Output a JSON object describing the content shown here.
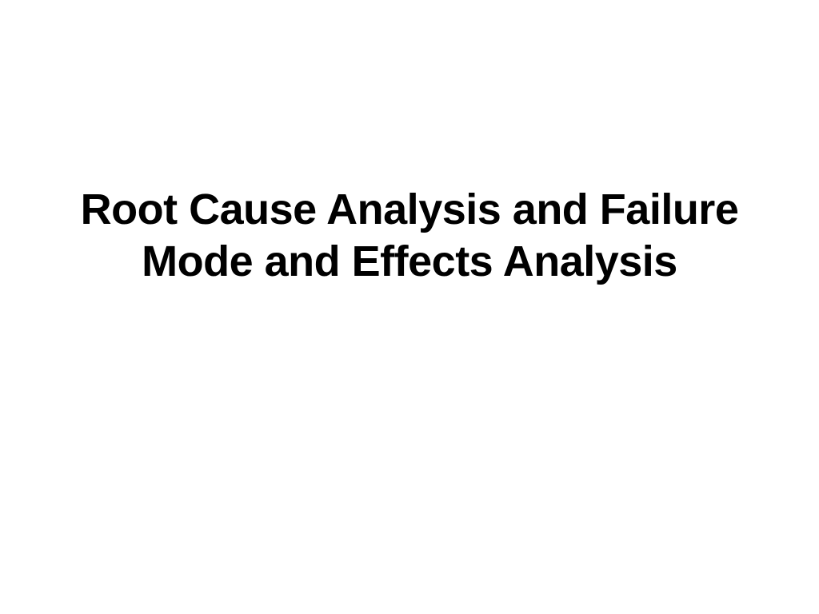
{
  "slide": {
    "title": "Root Cause Analysis and Failure Mode and Effects Analysis",
    "background_color": "#ffffff",
    "title_color": "#000000",
    "title_fontsize": 54,
    "title_fontweight": 700,
    "title_alignment": "center",
    "title_line_height": 1.2
  }
}
